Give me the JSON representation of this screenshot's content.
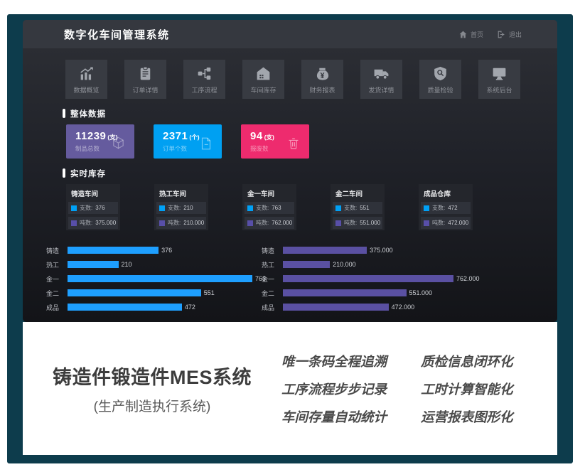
{
  "header": {
    "title": "数字化车间管理系统",
    "home_label": "首页",
    "logout_label": "退出"
  },
  "nav": {
    "items": [
      {
        "label": "数据概览",
        "icon": "data-overview-icon"
      },
      {
        "label": "订单详情",
        "icon": "order-details-icon"
      },
      {
        "label": "工序流程",
        "icon": "process-flow-icon"
      },
      {
        "label": "车间库存",
        "icon": "workshop-inventory-icon"
      },
      {
        "label": "财务报表",
        "icon": "finance-report-icon"
      },
      {
        "label": "发货详情",
        "icon": "shipping-details-icon"
      },
      {
        "label": "质量检验",
        "icon": "quality-inspection-icon"
      },
      {
        "label": "系统后台",
        "icon": "system-backend-icon"
      }
    ]
  },
  "overall": {
    "section_title": "整体数据",
    "cards": [
      {
        "value": "11239",
        "unit": "(支)",
        "label": "制品总数",
        "color": "#655b9e",
        "icon": "cube-icon"
      },
      {
        "value": "2371",
        "unit": "(个)",
        "label": "订单个数",
        "color": "#00a0f2",
        "icon": "document-icon"
      },
      {
        "value": "94",
        "unit": "(支)",
        "label": "报废数",
        "color": "#ee2b6e",
        "icon": "trash-icon"
      }
    ]
  },
  "inventory": {
    "section_title": "实时库存",
    "legend": {
      "pieces_label": "支数:",
      "tons_label": "吨数:",
      "pieces_color": "#00a0f5",
      "tons_color": "#584fa8"
    },
    "workshops": [
      {
        "name": "铸造车间",
        "pieces": "376",
        "tons": "375.000"
      },
      {
        "name": "热工车间",
        "pieces": "210",
        "tons": "210.000"
      },
      {
        "name": "金一车间",
        "pieces": "763",
        "tons": "762.000"
      },
      {
        "name": "金二车间",
        "pieces": "551",
        "tons": "551.000"
      },
      {
        "name": "成品仓库",
        "pieces": "472",
        "tons": "472.000"
      }
    ]
  },
  "chart_data": [
    {
      "type": "bar",
      "orientation": "horizontal",
      "title": "",
      "categories": [
        "铸造",
        "热工",
        "金一",
        "金二",
        "成品"
      ],
      "values": [
        376,
        210,
        763,
        551,
        472
      ],
      "value_labels": [
        "376",
        "210",
        "763",
        "551",
        "472"
      ],
      "bar_color": "#1e9fff",
      "xlim": [
        0,
        763
      ],
      "grid": false,
      "legend": "none"
    },
    {
      "type": "bar",
      "orientation": "horizontal",
      "title": "",
      "categories": [
        "铸造",
        "热工",
        "金一",
        "金二",
        "成品"
      ],
      "values": [
        375,
        210,
        762,
        551,
        472
      ],
      "value_labels": [
        "375.000",
        "210.000",
        "762.000",
        "551.000",
        "472.000"
      ],
      "bar_color": "#5a50a2",
      "xlim": [
        0,
        762
      ],
      "grid": false,
      "legend": "none"
    }
  ],
  "promo": {
    "title": "铸造件锻造件MES系统",
    "subtitle": "(生产制造执行系统)",
    "features_col1": [
      "唯一条码全程追溯",
      "工序流程步步记录",
      "车间存量自动统计"
    ],
    "features_col2": [
      "质检信息闭环化",
      "工时计算智能化",
      "运营报表图形化"
    ]
  },
  "colors": {
    "frame_teal": "#0d3c4c",
    "dash_header": "#35383f",
    "tile_bg": "#383b42",
    "pieces_blue": "#00a0f5",
    "tons_purple": "#584fa8"
  }
}
